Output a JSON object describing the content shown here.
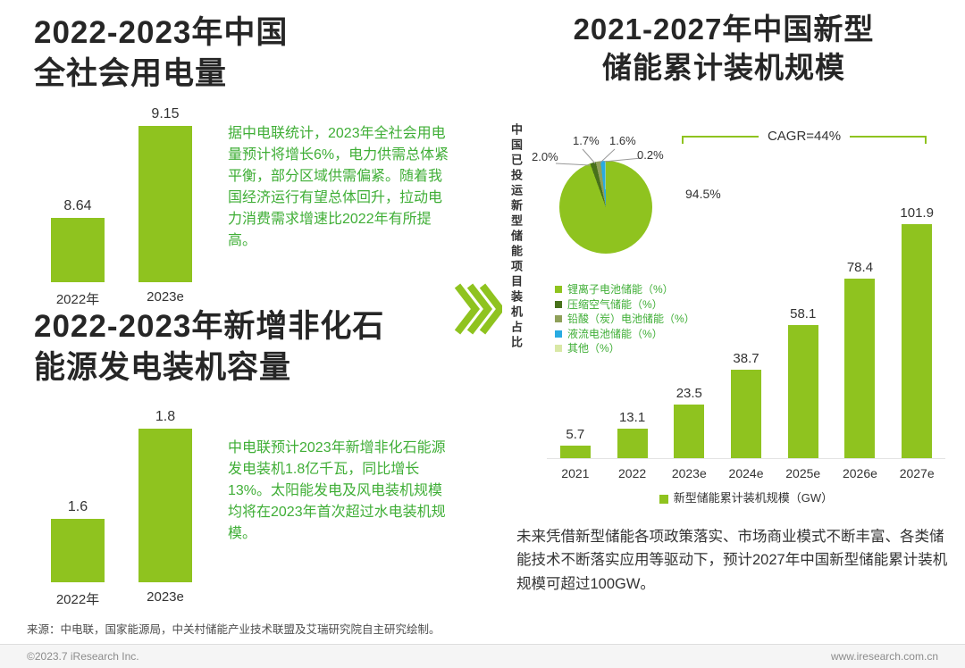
{
  "colors": {
    "brand_green": "#8FC31F",
    "text_green": "#3FAE36",
    "blue": "#29ABE2",
    "dark": "#262626"
  },
  "sections": {
    "left_top": {
      "title_line1": "2022-2023年中国",
      "title_line2": "全社会用电量",
      "annotation": "据中电联统计，2023年全社会用电量预计将增长6%，电力供需总体紧平衡，部分区域供需偏紧。随着我国经济运行有望总体回升，拉动电力消费需求增速比2022年有所提高。"
    },
    "left_bottom": {
      "title_line1": "2022-2023年新增非化石",
      "title_line2": "能源发电装机容量",
      "annotation": "中电联预计2023年新增非化石能源发电装机1.8亿千瓦，同比增长13%。太阳能发电及风电装机规模均将在2023年首次超过水电装机规模。"
    },
    "right": {
      "title_line1": "2021-2027年中国新型",
      "title_line2": "储能累计装机规模",
      "pie_caption": "中国已投运新型储能项目装机占比",
      "summary": "未来凭借新型储能各项政策落实、市场商业模式不断丰富、各类储能技术不断落实应用等驱动下，预计2027年中国新型储能累计装机规模可超过100GW。"
    }
  },
  "chart_data": [
    {
      "id": "electricity-consumption",
      "type": "bar",
      "title": "2022-2023年中国全社会用电量",
      "categories": [
        "2022年",
        "2023e"
      ],
      "values": [
        8.64,
        9.15
      ],
      "value_labels": [
        "8.64",
        "9.15"
      ],
      "ylim": [
        8.28,
        9.15
      ],
      "grid": false,
      "bar_color": "#8FC31F"
    },
    {
      "id": "nonfossil-new-capacity",
      "type": "bar",
      "title": "2022-2023年新增非化石能源发电装机容量",
      "categories": [
        "2022年",
        "2023e"
      ],
      "values": [
        1.6,
        1.8
      ],
      "value_labels": [
        "1.6",
        "1.8"
      ],
      "ylim": [
        1.46,
        1.8
      ],
      "grid": false,
      "bar_color": "#8FC31F"
    },
    {
      "id": "storage-share-pie",
      "type": "pie",
      "title": "中国已投运新型储能项目装机占比",
      "labels": [
        "锂离子电池储能（%）",
        "压缩空气储能（%）",
        "铅酸（炭）电池储能（%）",
        "液流电池储能（%）",
        "其他（%）"
      ],
      "values": [
        94.5,
        2.0,
        1.7,
        1.6,
        0.2
      ],
      "value_labels": [
        "94.5%",
        "2.0%",
        "1.7%",
        "1.6%",
        "0.2%"
      ],
      "colors": [
        "#8FC31F",
        "#48711B",
        "#8FA05A",
        "#29ABE2",
        "#D9E8A6"
      ],
      "legend_position": "below-left"
    },
    {
      "id": "storage-cumulative-capacity",
      "type": "bar",
      "title": "2021-2027年中国新型储能累计装机规模",
      "categories": [
        "2021",
        "2022",
        "2023e",
        "2024e",
        "2025e",
        "2026e",
        "2027e"
      ],
      "values": [
        5.7,
        13.1,
        23.5,
        38.7,
        58.1,
        78.4,
        101.9
      ],
      "value_labels": [
        "5.7",
        "13.1",
        "23.5",
        "38.7",
        "58.1",
        "78.4",
        "101.9"
      ],
      "ylim": [
        0,
        103
      ],
      "grid": false,
      "bar_color": "#8FC31F",
      "annotation": "CAGR=44%",
      "legend": "新型储能累计装机规模（GW）"
    }
  ],
  "footer": {
    "source": "来源：中电联，国家能源局，中关村储能产业技术联盟及艾瑞研究院自主研究绘制。",
    "copyright": "©2023.7 iResearch Inc.",
    "website": "www.iresearch.com.cn"
  }
}
